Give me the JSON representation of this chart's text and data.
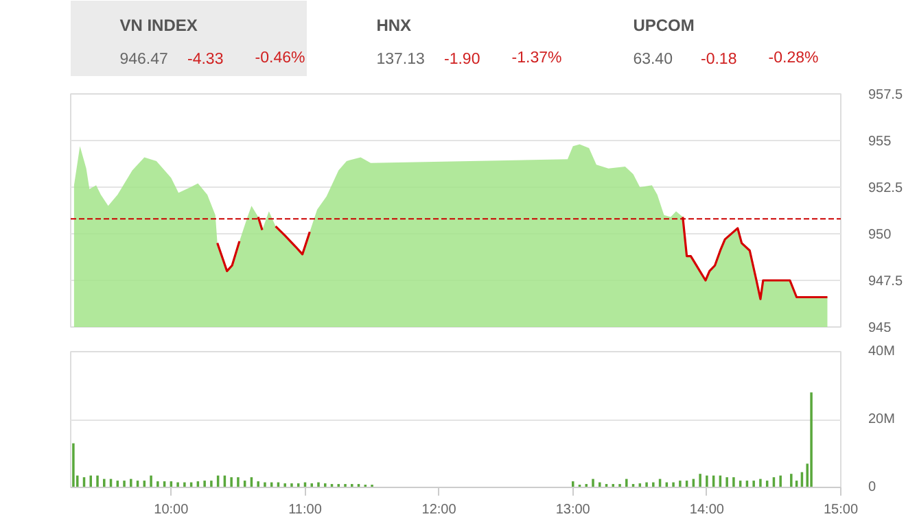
{
  "chart_data": [
    {
      "type": "other",
      "categories": [
        "VN INDEX",
        "HNX",
        "UPCOM"
      ],
      "annotations": [
        "946.47",
        "-4.33",
        "-0.46%",
        "137.13",
        "-1.90",
        "-1.37%",
        "63.40",
        "-0.18",
        "-0.28%"
      ]
    },
    {
      "type": "area",
      "xlim": [
        9.25,
        15
      ],
      "ylim": [
        945,
        957.5
      ],
      "yticks": [
        945,
        947.5,
        950,
        952.5,
        955,
        957.5
      ],
      "grid": "y",
      "tick_labels": "y",
      "x": [
        9.275,
        9.319,
        9.366,
        9.39,
        9.44,
        9.475,
        9.53,
        9.6,
        9.71,
        9.8,
        9.89,
        10.0,
        10.055,
        10.145,
        10.2,
        10.27,
        10.33,
        10.345,
        10.417,
        10.455,
        10.51,
        10.57,
        10.6,
        10.65,
        10.68,
        10.73,
        10.78,
        10.85,
        10.93,
        10.98,
        11.035,
        11.09,
        11.16,
        11.25,
        11.31,
        11.415,
        11.49,
        12.96,
        13.0,
        13.05,
        13.12,
        13.175,
        13.265,
        13.39,
        13.45,
        13.5,
        13.59,
        13.63,
        13.68,
        13.73,
        13.77,
        13.82,
        13.85,
        13.88,
        13.99,
        14.02,
        14.06,
        14.1,
        14.135,
        14.23,
        14.26,
        14.32,
        14.37,
        14.4,
        14.42,
        14.62,
        14.67,
        14.9
      ],
      "series": [
        {
          "color": "#a3e48a",
          "values": [
            952.6,
            954.7,
            953.5,
            952.4,
            952.6,
            952.1,
            951.5,
            952.1,
            953.4,
            954.1,
            953.9,
            953.0,
            952.2,
            952.5,
            952.7,
            952.1,
            951.0,
            949.5,
            948.0,
            948.3,
            949.6,
            950.9,
            951.5,
            950.9,
            950.2,
            951.2,
            950.4,
            949.9,
            949.3,
            948.9,
            950.1,
            951.3,
            952.0,
            953.4,
            953.9,
            954.1,
            953.8,
            954.0,
            954.7,
            954.8,
            954.6,
            953.7,
            953.5,
            953.6,
            953.2,
            952.5,
            952.6,
            952.1,
            951.0,
            950.9,
            951.2,
            950.9,
            948.8,
            948.8,
            947.5,
            948.0,
            948.3,
            949.1,
            949.7,
            950.3,
            949.5,
            949.1,
            947.5,
            946.5,
            947.5,
            947.5,
            946.6,
            946.6
          ]
        },
        {
          "type": "line",
          "color": "#d40000",
          "values": [
            null,
            null,
            null,
            null,
            null,
            null,
            null,
            null,
            null,
            null,
            null,
            null,
            null,
            null,
            null,
            null,
            null,
            949.5,
            948.0,
            948.3,
            949.6,
            null,
            null,
            950.9,
            950.2,
            null,
            950.4,
            949.9,
            949.3,
            948.9,
            950.1,
            null,
            null,
            null,
            null,
            null,
            null,
            null,
            null,
            null,
            null,
            null,
            null,
            null,
            null,
            null,
            null,
            null,
            null,
            null,
            null,
            950.9,
            948.8,
            948.8,
            947.5,
            948.0,
            948.3,
            949.1,
            949.7,
            950.3,
            949.5,
            949.1,
            947.5,
            946.5,
            947.5,
            947.5,
            946.6,
            946.6
          ]
        }
      ],
      "ref_lines": [
        {
          "axis": "y",
          "value": 950.8,
          "color": "#cc0000",
          "line_style": "dashed"
        }
      ]
    },
    {
      "type": "bar",
      "color": "#5aa83c",
      "xlim": [
        9.25,
        15
      ],
      "ylim": [
        0,
        40
      ],
      "grid": "y",
      "xticks": [
        {
          "value": 10,
          "label": "10:00"
        },
        {
          "value": 11,
          "label": "11:00"
        },
        {
          "value": 12,
          "label": "12:00"
        },
        {
          "value": 13,
          "label": "13:00"
        },
        {
          "value": 14,
          "label": "14:00"
        },
        {
          "value": 15,
          "label": "15:00"
        }
      ],
      "yticks": [
        0,
        {
          "value": 20,
          "label": "20M"
        },
        {
          "value": 40,
          "label": "40M"
        }
      ],
      "x": [
        9.27,
        9.3,
        9.35,
        9.4,
        9.45,
        9.5,
        9.55,
        9.6,
        9.65,
        9.7,
        9.75,
        9.8,
        9.85,
        9.9,
        9.95,
        10.0,
        10.05,
        10.1,
        10.15,
        10.2,
        10.25,
        10.3,
        10.35,
        10.4,
        10.45,
        10.5,
        10.55,
        10.6,
        10.65,
        10.7,
        10.75,
        10.8,
        10.85,
        10.9,
        10.95,
        11.0,
        11.05,
        11.1,
        11.15,
        11.2,
        11.25,
        11.3,
        11.35,
        11.4,
        11.45,
        11.5,
        13.0,
        13.05,
        13.1,
        13.15,
        13.2,
        13.25,
        13.3,
        13.35,
        13.4,
        13.45,
        13.5,
        13.55,
        13.6,
        13.65,
        13.7,
        13.75,
        13.8,
        13.85,
        13.9,
        13.95,
        14.0,
        14.05,
        14.1,
        14.15,
        14.2,
        14.25,
        14.3,
        14.35,
        14.4,
        14.45,
        14.5,
        14.55,
        14.63,
        14.67,
        14.71,
        14.75,
        14.78
      ],
      "values": [
        13,
        3.5,
        3,
        3.5,
        3.5,
        2.5,
        2.5,
        2,
        2,
        2.5,
        2,
        2,
        3.5,
        1.8,
        1.8,
        1.8,
        1.5,
        1.5,
        1.5,
        1.8,
        2,
        2,
        3.5,
        3.5,
        3,
        3,
        2,
        3,
        1.8,
        1.5,
        1.5,
        1.5,
        1.2,
        1.2,
        1.2,
        1.5,
        1.2,
        1.5,
        1.2,
        1,
        1,
        1,
        1,
        1,
        0.8,
        0.8,
        1.8,
        0.8,
        1,
        2.5,
        1.5,
        1,
        1,
        1,
        2.5,
        1,
        1.2,
        1.5,
        1.5,
        2.5,
        1.5,
        1.5,
        2,
        2,
        2.5,
        4,
        3.5,
        3.5,
        3.5,
        3,
        3,
        2,
        2,
        2,
        2.5,
        2,
        3,
        3.5,
        4,
        2,
        4.5,
        7,
        28
      ]
    }
  ]
}
